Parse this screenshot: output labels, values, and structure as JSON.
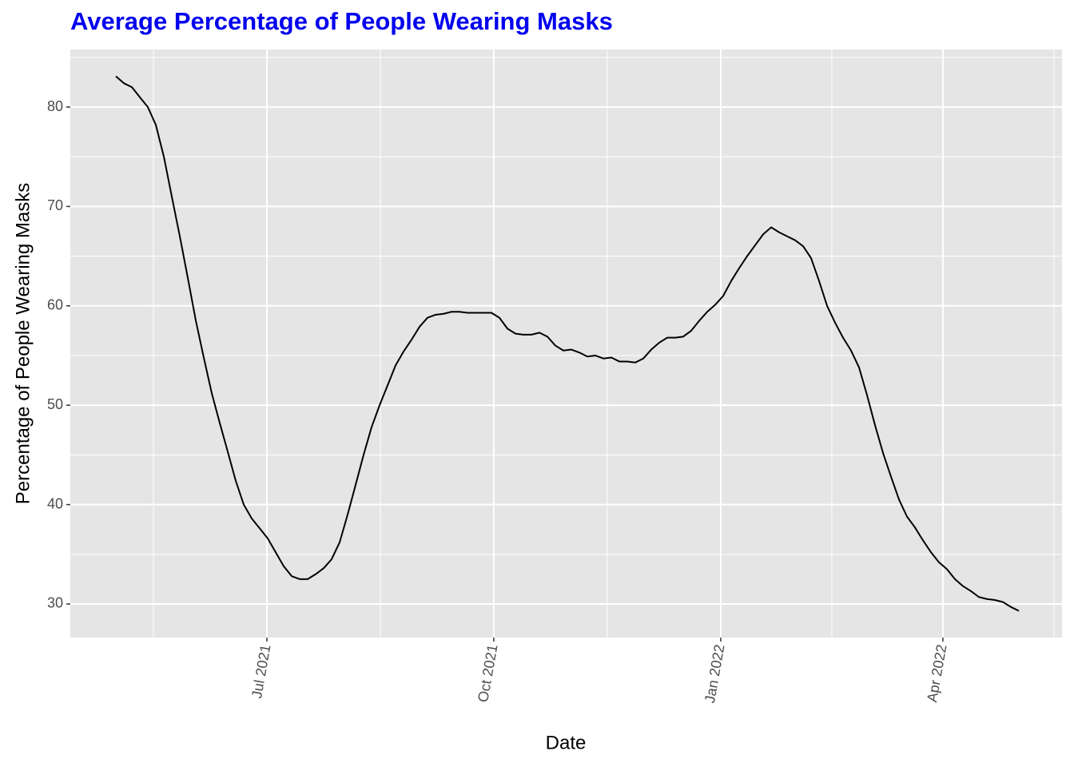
{
  "chart_data": {
    "type": "line",
    "title": "Average Percentage of People Wearing Masks",
    "x_label": "Date",
    "y_label": "Percentage of People Wearing Masks",
    "color": "#000000",
    "grid": true,
    "xlim": [
      2021.2776,
      2022.379
    ],
    "ylim": [
      26.62,
      85.79
    ],
    "xticks": [
      {
        "value": 2021.4959,
        "label": "Jul 2021"
      },
      {
        "value": 2021.7479,
        "label": "Oct 2021"
      },
      {
        "value": 2022.0,
        "label": "Jan 2022"
      },
      {
        "value": 2022.2467,
        "label": "Apr 2022"
      }
    ],
    "yticks": [
      30,
      40,
      50,
      60,
      70,
      80
    ],
    "x": [
      2021.3282,
      2021.3371,
      2021.346,
      2021.3548,
      2021.3637,
      2021.3726,
      2021.3815,
      2021.3903,
      2021.3992,
      2021.4081,
      2021.417,
      2021.4258,
      2021.4347,
      2021.4436,
      2021.4525,
      2021.4613,
      2021.4702,
      2021.4791,
      2021.488,
      2021.4968,
      2021.5057,
      2021.5146,
      2021.5235,
      2021.5323,
      2021.5412,
      2021.5501,
      2021.559,
      2021.5678,
      2021.5767,
      2021.5856,
      2021.5945,
      2021.6033,
      2021.6122,
      2021.6211,
      2021.63,
      2021.6388,
      2021.6477,
      2021.6566,
      2021.6655,
      2021.6743,
      2021.6832,
      2021.6921,
      2021.701,
      2021.7098,
      2021.7187,
      2021.7276,
      2021.7365,
      2021.7453,
      2021.7542,
      2021.7631,
      2021.772,
      2021.7808,
      2021.7897,
      2021.7986,
      2021.8075,
      2021.8163,
      2021.8252,
      2021.8341,
      2021.843,
      2021.8518,
      2021.8607,
      2021.8696,
      2021.8785,
      2021.8873,
      2021.8962,
      2021.9051,
      2021.914,
      2021.9228,
      2021.9317,
      2021.9406,
      2021.9495,
      2021.9583,
      2021.9672,
      2021.9761,
      2021.985,
      2021.9938,
      2022.0027,
      2022.0116,
      2022.0205,
      2022.0293,
      2022.0382,
      2022.0471,
      2022.056,
      2022.0648,
      2022.0737,
      2022.0826,
      2022.0915,
      2022.1003,
      2022.1092,
      2022.1181,
      2022.127,
      2022.1358,
      2022.1447,
      2022.1536,
      2022.1625,
      2022.1713,
      2022.1802,
      2022.1891,
      2022.198,
      2022.2068,
      2022.2157,
      2022.2246,
      2022.2335,
      2022.2423,
      2022.2512,
      2022.2601,
      2022.269,
      2022.2778,
      2022.2867,
      2022.2956,
      2022.3045,
      2022.3133,
      2022.3222,
      2022.3311
    ],
    "values": [
      83.1,
      82.4,
      82.0,
      81.0,
      80.0,
      78.2,
      75.0,
      71.0,
      67.0,
      62.8,
      58.5,
      54.8,
      51.2,
      48.2,
      45.3,
      42.4,
      40.0,
      38.6,
      37.6,
      36.6,
      35.2,
      33.8,
      32.8,
      32.5,
      32.5,
      33.0,
      33.6,
      34.5,
      36.2,
      39.0,
      42.0,
      45.0,
      47.8,
      50.0,
      52.0,
      54.0,
      55.4,
      56.6,
      57.9,
      58.8,
      59.1,
      59.2,
      59.4,
      59.4,
      59.3,
      59.3,
      59.3,
      59.3,
      58.8,
      57.7,
      57.2,
      57.1,
      57.1,
      57.3,
      56.9,
      56.0,
      55.5,
      55.6,
      55.3,
      54.9,
      55.0,
      54.7,
      54.8,
      54.4,
      54.4,
      54.3,
      54.7,
      55.6,
      56.3,
      56.8,
      56.8,
      56.9,
      57.5,
      58.5,
      59.4,
      60.1,
      61.0,
      62.5,
      63.8,
      65.0,
      66.1,
      67.2,
      67.9,
      67.4,
      67.0,
      66.6,
      66.0,
      64.8,
      62.5,
      60.0,
      58.3,
      56.8,
      55.5,
      53.8,
      51.0,
      48.0,
      45.2,
      42.8,
      40.5,
      38.8,
      37.7,
      36.4,
      35.2,
      34.2,
      33.5,
      32.5,
      31.8,
      31.3,
      30.7,
      30.5,
      30.4,
      30.2,
      29.7,
      29.3
    ]
  }
}
